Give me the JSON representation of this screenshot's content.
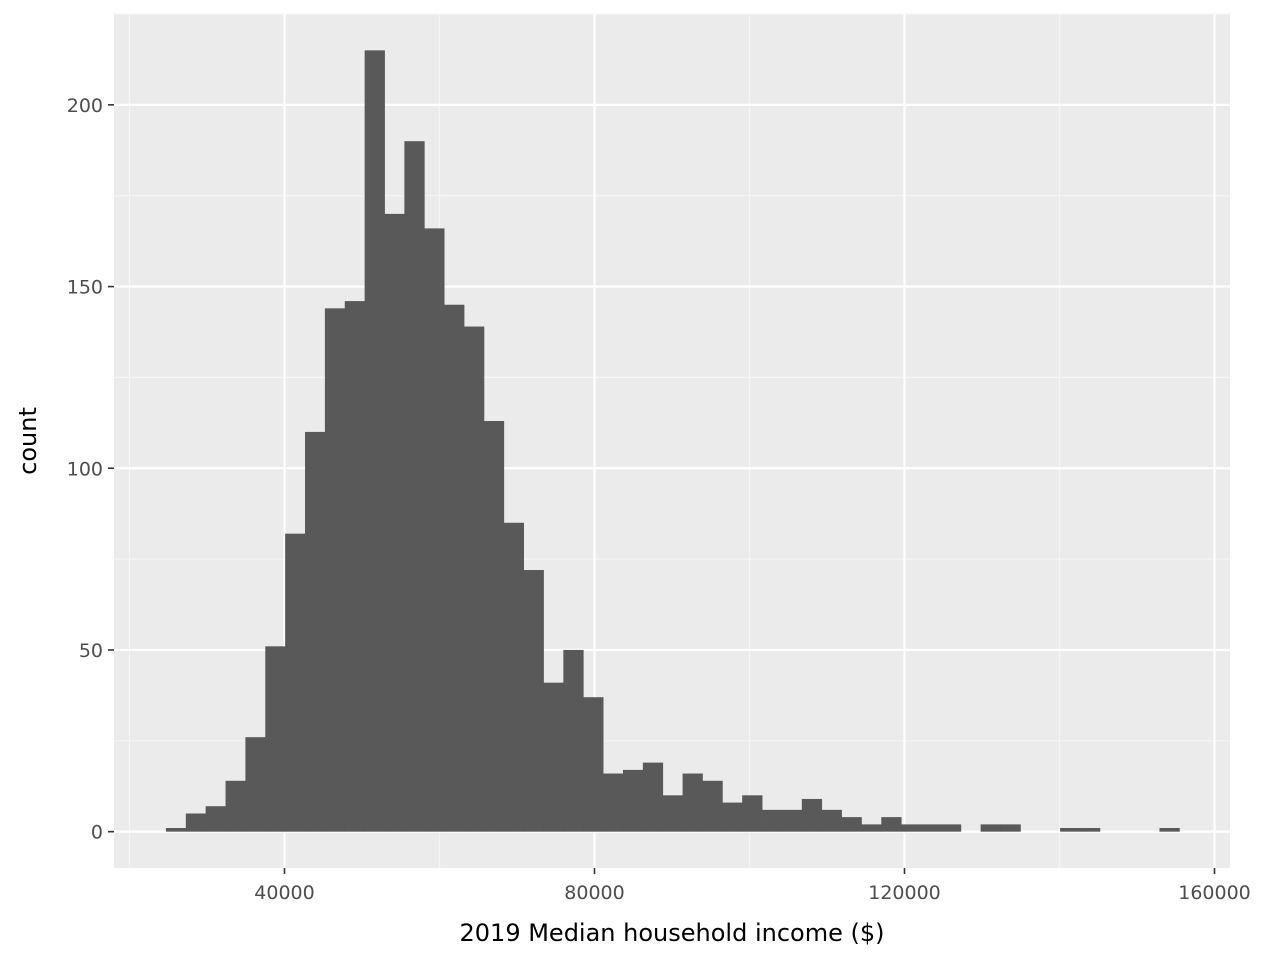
{
  "chart_data": {
    "type": "bar",
    "title": "",
    "xlabel": "2019 Median household income ($)",
    "ylabel": "count",
    "xlim": [
      18000,
      162000
    ],
    "ylim": [
      -10,
      225
    ],
    "x_ticks": [
      40000,
      80000,
      120000,
      160000
    ],
    "x_tick_labels": [
      "40000",
      "80000",
      "120000",
      "160000"
    ],
    "y_ticks": [
      0,
      50,
      100,
      150,
      200
    ],
    "y_tick_labels": [
      "0",
      "50",
      "100",
      "150",
      "200"
    ],
    "grid": true,
    "legend": "none",
    "bin_width": 2564,
    "bin_start": 24700,
    "values": [
      1,
      5,
      7,
      14,
      26,
      51,
      82,
      110,
      144,
      146,
      215,
      170,
      190,
      166,
      145,
      139,
      113,
      85,
      72,
      41,
      50,
      37,
      16,
      17,
      19,
      10,
      16,
      14,
      8,
      10,
      6,
      6,
      9,
      6,
      4,
      2,
      4,
      2,
      2,
      2,
      0,
      2,
      2,
      0,
      0,
      1,
      1,
      0,
      0,
      0,
      1
    ],
    "colors": {
      "bar": "#595959",
      "panel": "#ebebeb",
      "grid_major": "#ffffff",
      "grid_minor": "#f5f5f5"
    }
  }
}
